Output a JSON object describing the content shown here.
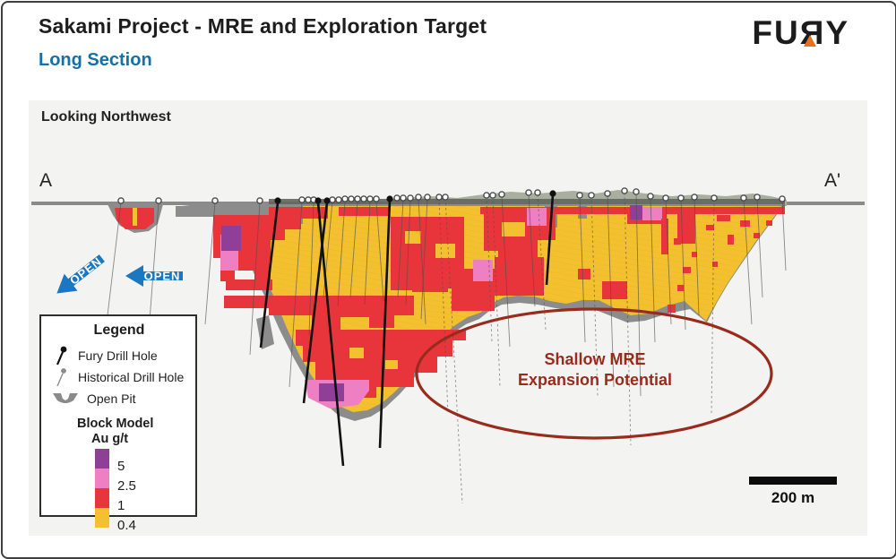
{
  "header": {
    "title": "Sakami Project - MRE and Exploration Target",
    "subtitle": "Long Section",
    "logo": {
      "left": "FU",
      "mirrored_r": "Я",
      "right": "Y"
    }
  },
  "view_label": "Looking Northwest",
  "section_labels": {
    "left": "A",
    "right": "A'"
  },
  "open_arrow_label": "OPEN",
  "annotation": {
    "line1": "Shallow MRE",
    "line2": "Expansion Potential"
  },
  "scale_bar": {
    "label": "200 m"
  },
  "legend": {
    "title": "Legend",
    "items": [
      {
        "label": "Fury Drill Hole"
      },
      {
        "label": "Historical Drill Hole"
      },
      {
        "label": "Open Pit"
      }
    ],
    "block_model": {
      "title": "Block Model",
      "unit": "Au g/t",
      "grades": [
        {
          "value": "5",
          "color": "#8f3f97"
        },
        {
          "value": "2.5",
          "color": "#ee7fc2"
        },
        {
          "value": "1",
          "color": "#e8353c"
        },
        {
          "value": "0.4",
          "color": "#f3c02f"
        }
      ]
    }
  },
  "colors": {
    "ink": "#1d1d1d",
    "subtitle_blue": "#1470a8",
    "arrow_blue": "#1b77c0",
    "panel_bg": "#f3f3f1",
    "pit_gray": "#8c8c8c",
    "dark_gray": "#63665c",
    "topo_green": "#a9ae9f",
    "surface_gray": "#8a8a8a",
    "yellow": "#f3c02f",
    "red": "#e8353c",
    "pink": "#ee7fc2",
    "purple": "#8f3f97",
    "annotation": "#992b1d",
    "logo_orange": "#e8701f"
  },
  "section": {
    "drill_holes": {
      "fury": [
        [
          310,
          226,
          291,
          388
        ],
        [
          355,
          226,
          383,
          520
        ],
        [
          365,
          226,
          339,
          450
        ],
        [
          435,
          223,
          424,
          500
        ],
        [
          617,
          217,
          610,
          318
        ]
      ],
      "historical": [
        [
          135,
          226,
          120,
          352,
          0
        ],
        [
          177,
          226,
          165,
          384,
          0
        ],
        [
          240,
          226,
          229,
          362,
          0
        ],
        [
          290,
          226,
          279,
          396,
          0
        ],
        [
          337,
          225,
          323,
          432,
          0
        ],
        [
          350,
          225,
          345,
          374,
          0
        ],
        [
          371,
          225,
          361,
          332,
          0
        ],
        [
          385,
          225,
          377,
          342,
          0
        ],
        [
          399,
          225,
          391,
          332,
          0
        ],
        [
          413,
          225,
          407,
          340,
          0
        ],
        [
          420,
          225,
          428,
          336,
          0
        ],
        [
          450,
          223,
          444,
          332,
          0
        ],
        [
          458,
          223,
          453,
          340,
          0
        ],
        [
          467,
          222,
          475,
          362,
          0
        ],
        [
          477,
          222,
          470,
          356,
          0
        ],
        [
          490,
          221,
          500,
          462,
          1
        ],
        [
          497,
          221,
          516,
          562,
          1
        ],
        [
          543,
          219,
          549,
          382,
          1
        ],
        [
          550,
          219,
          558,
          432,
          1
        ],
        [
          560,
          218,
          569,
          387,
          0
        ],
        [
          590,
          217,
          597,
          342,
          0
        ],
        [
          600,
          217,
          609,
          368,
          1
        ],
        [
          647,
          219,
          653,
          382,
          0
        ],
        [
          660,
          219,
          667,
          442,
          1
        ],
        [
          678,
          217,
          685,
          432,
          0
        ],
        [
          697,
          215,
          704,
          497,
          1
        ],
        [
          710,
          216,
          715,
          442,
          0
        ],
        [
          726,
          220,
          731,
          382,
          0
        ],
        [
          743,
          222,
          749,
          362,
          0
        ],
        [
          760,
          222,
          765,
          368,
          0
        ],
        [
          775,
          221,
          780,
          352,
          0
        ],
        [
          797,
          222,
          794,
          462,
          1
        ],
        [
          830,
          222,
          839,
          362,
          0
        ],
        [
          845,
          221,
          851,
          332,
          0
        ],
        [
          873,
          223,
          877,
          302,
          0
        ]
      ]
    },
    "collars": {
      "fury": [
        [
          310,
          224
        ],
        [
          355,
          224
        ],
        [
          365,
          224
        ],
        [
          435,
          222
        ],
        [
          617,
          216
        ]
      ],
      "historical": [
        [
          135,
          224
        ],
        [
          177,
          224
        ],
        [
          240,
          224
        ],
        [
          290,
          224
        ],
        [
          337,
          223
        ],
        [
          344,
          223
        ],
        [
          350,
          223
        ],
        [
          371,
          223
        ],
        [
          378,
          223
        ],
        [
          385,
          222
        ],
        [
          392,
          222
        ],
        [
          399,
          222
        ],
        [
          406,
          222
        ],
        [
          413,
          222
        ],
        [
          420,
          222
        ],
        [
          443,
          221
        ],
        [
          450,
          221
        ],
        [
          458,
          221
        ],
        [
          467,
          220
        ],
        [
          477,
          220
        ],
        [
          490,
          220
        ],
        [
          497,
          220
        ],
        [
          543,
          218
        ],
        [
          550,
          218
        ],
        [
          560,
          217
        ],
        [
          590,
          215
        ],
        [
          600,
          215
        ],
        [
          647,
          218
        ],
        [
          660,
          218
        ],
        [
          678,
          216
        ],
        [
          697,
          213
        ],
        [
          710,
          214
        ],
        [
          726,
          219
        ],
        [
          743,
          221
        ],
        [
          760,
          221
        ],
        [
          775,
          220
        ],
        [
          797,
          221
        ],
        [
          830,
          221
        ],
        [
          845,
          220
        ],
        [
          873,
          222
        ]
      ]
    }
  }
}
